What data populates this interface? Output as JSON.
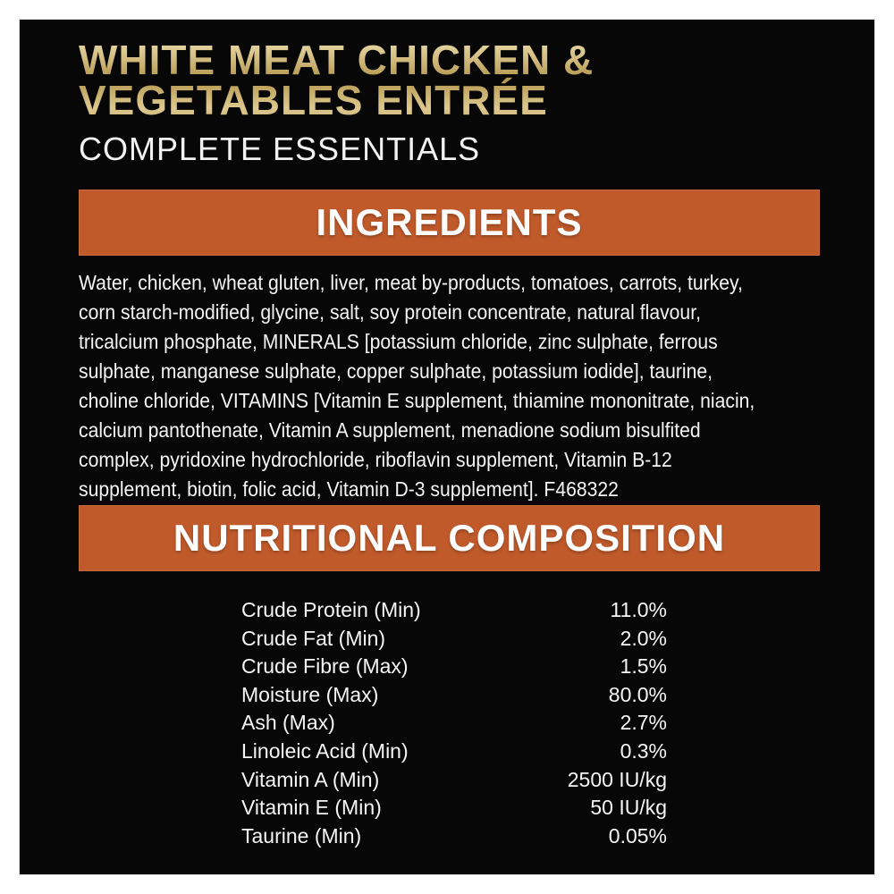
{
  "header": {
    "title_line1": "WHITE MEAT CHICKEN &",
    "title_line2": "VEGETABLES ENTRÉE",
    "subtitle": "COMPLETE ESSENTIALS"
  },
  "ingredients": {
    "heading": "INGREDIENTS",
    "text": "Water, chicken, wheat gluten, liver, meat by-products, tomatoes, carrots, turkey,\ncorn starch-modified, glycine, salt, soy protein concentrate, natural flavour,\ntricalcium phosphate, MINERALS [potassium chloride, zinc sulphate, ferrous\nsulphate, manganese sulphate, copper sulphate, potassium iodide], taurine,\ncholine chloride, VITAMINS [Vitamin E supplement, thiamine mononitrate, niacin,\ncalcium pantothenate, Vitamin A supplement, menadione sodium bisulfited\ncomplex, pyridoxine hydrochloride, riboflavin supplement, Vitamin B-12\nsupplement, biotin, folic acid, Vitamin D-3 supplement]. F468322"
  },
  "nutrition": {
    "heading": "NUTRITIONAL COMPOSITION",
    "rows": [
      {
        "label": "Crude Protein (Min)",
        "value": "11.0%"
      },
      {
        "label": "Crude Fat (Min)",
        "value": "2.0%"
      },
      {
        "label": "Crude Fibre (Max)",
        "value": "1.5%"
      },
      {
        "label": "Moisture (Max)",
        "value": "80.0%"
      },
      {
        "label": "Ash (Max)",
        "value": "2.7%"
      },
      {
        "label": "Linoleic Acid (Min)",
        "value": "0.3%"
      },
      {
        "label": "Vitamin A (Min)",
        "value": "2500 IU/kg"
      },
      {
        "label": "Vitamin E (Min)",
        "value": "50 IU/kg"
      },
      {
        "label": "Taurine (Min)",
        "value": "0.05%"
      }
    ]
  },
  "colors": {
    "accent_orange": "#c05a2b",
    "gold": "#cdb679",
    "panel_black": "#070707",
    "text_white": "#f5f5f5",
    "page_background": "#ffffff"
  }
}
